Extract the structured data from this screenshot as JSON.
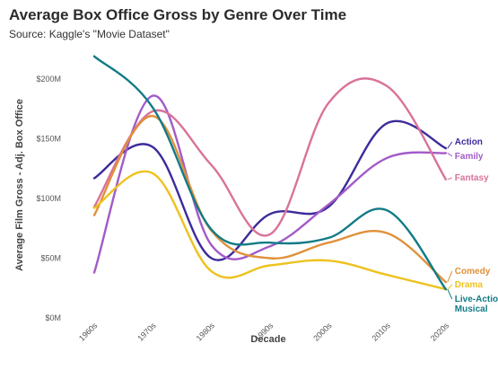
{
  "chart_data": {
    "type": "line",
    "title": "Average Box Office Gross by Genre Over Time",
    "subtitle": "Source: Kaggle's \"Movie Dataset\"",
    "xlabel": "Decade",
    "ylabel": "Average Film Gross - Adj. Box Office",
    "categories": [
      "1960s",
      "1970s",
      "1980s",
      "1990s",
      "2000s",
      "2010s",
      "2020s"
    ],
    "ylim": [
      0,
      200
    ],
    "yticks": [
      {
        "value": 0,
        "label": "$0M"
      },
      {
        "value": 50,
        "label": "$50M"
      },
      {
        "value": 100,
        "label": "$100M"
      },
      {
        "value": 150,
        "label": "$150M"
      },
      {
        "value": 200,
        "label": "$200M"
      }
    ],
    "grid": false,
    "legend": "direct labels at right end of lines",
    "series": [
      {
        "name": "Action",
        "color": "#3d2a9b",
        "values": [
          117,
          143,
          50,
          87,
          93,
          163,
          142
        ]
      },
      {
        "name": "Family",
        "color": "#a35ac8",
        "values": [
          38,
          186,
          61,
          60,
          95,
          134,
          138
        ]
      },
      {
        "name": "Fantasy",
        "color": "#d9729a",
        "values": [
          93,
          173,
          128,
          70,
          180,
          194,
          116
        ]
      },
      {
        "name": "Comedy",
        "color": "#e0903a",
        "values": [
          86,
          169,
          73,
          50,
          63,
          71,
          30
        ]
      },
      {
        "name": "Drama",
        "color": "#eec21e",
        "values": [
          92,
          121,
          39,
          44,
          48,
          36,
          24
        ]
      },
      {
        "name": "Live-Action Musical",
        "color": "#117b86",
        "values": [
          219,
          176,
          74,
          63,
          67,
          90,
          24
        ]
      }
    ],
    "series_labels": [
      {
        "lines": [
          "Action"
        ]
      },
      {
        "lines": [
          "Family"
        ]
      },
      {
        "lines": [
          "Fantasy"
        ]
      },
      {
        "lines": [
          "Comedy"
        ]
      },
      {
        "lines": [
          "Drama"
        ]
      },
      {
        "lines": [
          "Live-Action",
          "Musical"
        ]
      }
    ]
  }
}
